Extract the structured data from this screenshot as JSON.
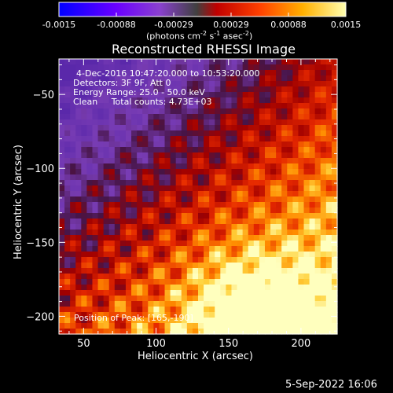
{
  "colorbar": {
    "ticks": [
      "-0.0015",
      "-0.00088",
      "-0.00029",
      "0.00029",
      "0.00088",
      "0.0015"
    ],
    "unit_pre": "(photons cm",
    "unit_exp1": "-2",
    "unit_mid": " s",
    "unit_exp2": "-1",
    "unit_post": " asec",
    "unit_exp3": "-2",
    "unit_end": ")"
  },
  "chart_data": {
    "type": "heatmap",
    "title": "Reconstructed RHESSI Image",
    "xlabel": "Heliocentric X (arcsec)",
    "ylabel": "Heliocentric Y (arcsec)",
    "xlim": [
      33,
      225
    ],
    "ylim": [
      -212,
      -26
    ],
    "xticks": [
      50,
      100,
      150,
      200
    ],
    "yticks": [
      -50,
      -100,
      -150,
      -200
    ],
    "colormap": "hot/rainbow (IDL color table)",
    "color_range": [
      -0.0015,
      0.0015
    ],
    "peak_position_approx": [
      165,
      -190
    ],
    "annotations": [
      "4-Dec-2016 10:47:20.000 to 10:53:20.000",
      "Detectors: 3F 9F, Att 0",
      "Energy Range: 25.0 - 50.0 keV",
      "Clean     Total counts: 4.73E+03",
      "Position of Peak: [165,-190]"
    ]
  },
  "footer": {
    "timestamp": "5-Sep-2022 16:06"
  }
}
